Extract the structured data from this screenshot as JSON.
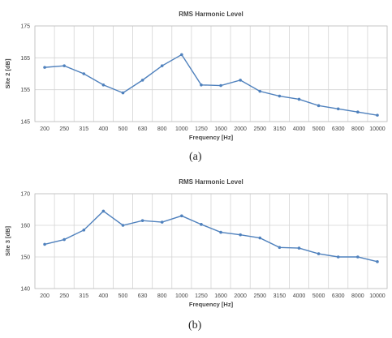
{
  "chart_data": [
    {
      "type": "line",
      "title": "RMS Harmonic Level",
      "xlabel": "Frequency [Hz]",
      "ylabel": "Site 2 [dB]",
      "ylim": [
        145,
        175
      ],
      "yticks": [
        145,
        155,
        165,
        175
      ],
      "categories": [
        "200",
        "250",
        "315",
        "400",
        "500",
        "630",
        "800",
        "1000",
        "1250",
        "1600",
        "2000",
        "2500",
        "3150",
        "4000",
        "5000",
        "6300",
        "8000",
        "10000"
      ],
      "series": [
        {
          "values": [
            162,
            162.5,
            160,
            156.5,
            154,
            158,
            162.5,
            166,
            156.5,
            156.3,
            158,
            154.5,
            153,
            152,
            150,
            149,
            148,
            147
          ]
        }
      ],
      "grid": true,
      "caption": "(a)"
    },
    {
      "type": "line",
      "title": "RMS Harmonic Level",
      "xlabel": "Frequency [Hz]",
      "ylabel": "Site 3 [dB]",
      "ylim": [
        140,
        170
      ],
      "yticks": [
        140,
        150,
        160,
        170
      ],
      "categories": [
        "200",
        "250",
        "315",
        "400",
        "500",
        "630",
        "800",
        "1000",
        "1250",
        "1600",
        "2000",
        "2500",
        "3150",
        "4000",
        "5000",
        "6300",
        "8000",
        "10000"
      ],
      "series": [
        {
          "values": [
            154,
            155.5,
            158.5,
            164.5,
            160,
            161.5,
            161,
            163,
            160.3,
            157.8,
            157,
            156,
            153,
            152.8,
            151,
            150,
            150,
            148.5
          ]
        }
      ],
      "grid": true,
      "caption": "(b)"
    }
  ],
  "style": {
    "line_color": "#4f81bd",
    "grid_color": "#d4d4d4"
  }
}
